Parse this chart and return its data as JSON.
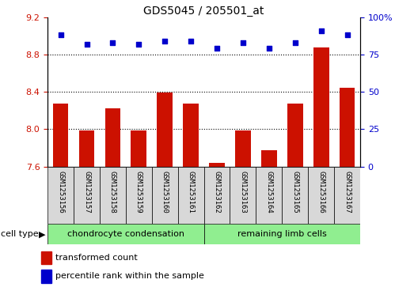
{
  "title": "GDS5045 / 205501_at",
  "samples": [
    "GSM1253156",
    "GSM1253157",
    "GSM1253158",
    "GSM1253159",
    "GSM1253160",
    "GSM1253161",
    "GSM1253162",
    "GSM1253163",
    "GSM1253164",
    "GSM1253165",
    "GSM1253166",
    "GSM1253167"
  ],
  "bar_values": [
    8.27,
    7.99,
    8.22,
    7.99,
    8.39,
    8.27,
    7.64,
    7.99,
    7.77,
    8.27,
    8.88,
    8.44
  ],
  "dot_values": [
    88,
    82,
    83,
    82,
    84,
    84,
    79,
    83,
    79,
    83,
    91,
    88
  ],
  "ylim_left": [
    7.6,
    9.2
  ],
  "ylim_right": [
    0,
    100
  ],
  "yticks_left": [
    7.6,
    8.0,
    8.4,
    8.8,
    9.2
  ],
  "yticks_right": [
    0,
    25,
    50,
    75,
    100
  ],
  "bar_color": "#CC1100",
  "dot_color": "#0000CC",
  "bar_bottom": 7.6,
  "group1_label": "chondrocyte condensation",
  "group2_label": "remaining limb cells",
  "group1_count": 6,
  "group2_count": 6,
  "legend_bar": "transformed count",
  "legend_dot": "percentile rank within the sample",
  "cell_type_label": "cell type",
  "sample_bg_color": "#D8D8D8",
  "group1_bg": "#90EE90",
  "group2_bg": "#90EE90",
  "title_fontsize": 10,
  "tick_fontsize": 8,
  "label_fontsize": 6.5,
  "group_fontsize": 8,
  "legend_fontsize": 8
}
